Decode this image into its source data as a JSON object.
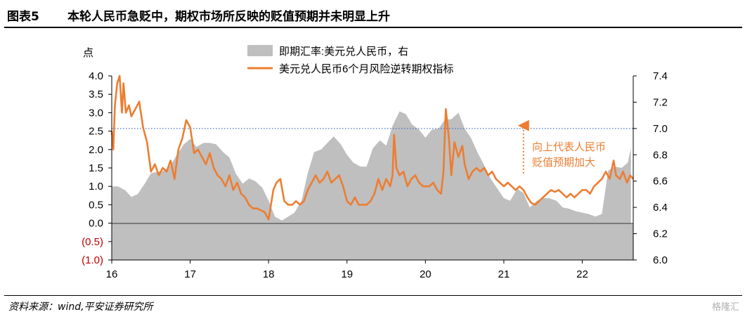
{
  "figure": {
    "number": "图表5",
    "title": "本轮人民币急贬中，期权市场所反映的贬值预期并未明显上升",
    "source": "资料来源：wind,平安证券研究所",
    "watermark": "格隆汇"
  },
  "colors": {
    "area": "#bfbfbf",
    "line": "#ed7d31",
    "ref_line": "#4472c4",
    "annotation": "#ed7d31"
  },
  "chart_data": {
    "type": "area",
    "unit_left": "点",
    "left_axis": {
      "min": -1.0,
      "max": 4.0,
      "ticks": [
        "(1.0)",
        "(0.5)",
        "0.0",
        "0.5",
        "1.0",
        "1.5",
        "2.0",
        "2.5",
        "3.0",
        "3.5",
        "4.0"
      ]
    },
    "right_axis": {
      "min": 6.0,
      "max": 7.4,
      "ticks": [
        "6.0",
        "6.2",
        "6.4",
        "6.6",
        "6.8",
        "7.0",
        "7.2",
        "7.4"
      ]
    },
    "x_ticks": [
      "16",
      "17",
      "18",
      "19",
      "20",
      "21",
      "22"
    ],
    "x_range": [
      2016.0,
      2022.65
    ],
    "legend_position": "top-center",
    "reference_line": {
      "axis": "right",
      "value": 7.0,
      "style": "dotted"
    },
    "annotation": {
      "text_line1": "向上代表人民币",
      "text_line2": "贬值预期加大",
      "arrow_x": 2021.25,
      "arrow_from": 1.35,
      "arrow_to": 2.65
    },
    "series": [
      {
        "name": "即期汇率:美元兑人民币，右",
        "axis": "right",
        "style": "area",
        "points": [
          [
            2016.0,
            6.56
          ],
          [
            2016.08,
            6.56
          ],
          [
            2016.17,
            6.53
          ],
          [
            2016.25,
            6.48
          ],
          [
            2016.33,
            6.5
          ],
          [
            2016.42,
            6.58
          ],
          [
            2016.5,
            6.66
          ],
          [
            2016.58,
            6.67
          ],
          [
            2016.67,
            6.68
          ],
          [
            2016.75,
            6.72
          ],
          [
            2016.83,
            6.8
          ],
          [
            2016.92,
            6.88
          ],
          [
            2017.0,
            6.92
          ],
          [
            2017.08,
            6.86
          ],
          [
            2017.17,
            6.89
          ],
          [
            2017.25,
            6.89
          ],
          [
            2017.33,
            6.88
          ],
          [
            2017.42,
            6.82
          ],
          [
            2017.5,
            6.78
          ],
          [
            2017.58,
            6.66
          ],
          [
            2017.67,
            6.58
          ],
          [
            2017.75,
            6.62
          ],
          [
            2017.83,
            6.6
          ],
          [
            2017.92,
            6.55
          ],
          [
            2018.0,
            6.45
          ],
          [
            2018.08,
            6.33
          ],
          [
            2018.17,
            6.3
          ],
          [
            2018.25,
            6.33
          ],
          [
            2018.33,
            6.36
          ],
          [
            2018.42,
            6.45
          ],
          [
            2018.5,
            6.66
          ],
          [
            2018.58,
            6.82
          ],
          [
            2018.67,
            6.84
          ],
          [
            2018.75,
            6.89
          ],
          [
            2018.83,
            6.94
          ],
          [
            2018.92,
            6.88
          ],
          [
            2019.0,
            6.8
          ],
          [
            2019.08,
            6.74
          ],
          [
            2019.17,
            6.71
          ],
          [
            2019.25,
            6.71
          ],
          [
            2019.33,
            6.85
          ],
          [
            2019.42,
            6.91
          ],
          [
            2019.5,
            6.87
          ],
          [
            2019.58,
            7.02
          ],
          [
            2019.67,
            7.13
          ],
          [
            2019.75,
            7.11
          ],
          [
            2019.83,
            7.03
          ],
          [
            2019.92,
            6.99
          ],
          [
            2020.0,
            6.93
          ],
          [
            2020.08,
            6.99
          ],
          [
            2020.17,
            7.0
          ],
          [
            2020.25,
            7.07
          ],
          [
            2020.33,
            7.07
          ],
          [
            2020.42,
            7.12
          ],
          [
            2020.5,
            7.0
          ],
          [
            2020.58,
            6.93
          ],
          [
            2020.67,
            6.81
          ],
          [
            2020.75,
            6.72
          ],
          [
            2020.83,
            6.62
          ],
          [
            2020.92,
            6.54
          ],
          [
            2021.0,
            6.47
          ],
          [
            2021.08,
            6.45
          ],
          [
            2021.17,
            6.54
          ],
          [
            2021.25,
            6.51
          ],
          [
            2021.33,
            6.4
          ],
          [
            2021.42,
            6.45
          ],
          [
            2021.5,
            6.47
          ],
          [
            2021.58,
            6.47
          ],
          [
            2021.67,
            6.45
          ],
          [
            2021.75,
            6.4
          ],
          [
            2021.83,
            6.39
          ],
          [
            2021.92,
            6.37
          ],
          [
            2022.0,
            6.36
          ],
          [
            2022.08,
            6.35
          ],
          [
            2022.17,
            6.33
          ],
          [
            2022.25,
            6.35
          ],
          [
            2022.33,
            6.68
          ],
          [
            2022.42,
            6.71
          ],
          [
            2022.5,
            6.7
          ],
          [
            2022.58,
            6.74
          ],
          [
            2022.62,
            6.85
          ]
        ]
      },
      {
        "name": "美元兑人民币6个月风险逆转期权指标",
        "axis": "left",
        "style": "line",
        "points": [
          [
            2016.0,
            2.5
          ],
          [
            2016.02,
            2.0
          ],
          [
            2016.04,
            3.2
          ],
          [
            2016.07,
            3.8
          ],
          [
            2016.1,
            4.0
          ],
          [
            2016.13,
            3.0
          ],
          [
            2016.15,
            3.8
          ],
          [
            2016.18,
            3.0
          ],
          [
            2016.22,
            3.2
          ],
          [
            2016.25,
            2.9
          ],
          [
            2016.3,
            3.1
          ],
          [
            2016.35,
            3.3
          ],
          [
            2016.4,
            2.6
          ],
          [
            2016.45,
            2.2
          ],
          [
            2016.5,
            1.4
          ],
          [
            2016.55,
            1.6
          ],
          [
            2016.6,
            1.3
          ],
          [
            2016.65,
            1.5
          ],
          [
            2016.7,
            1.4
          ],
          [
            2016.75,
            1.7
          ],
          [
            2016.8,
            1.2
          ],
          [
            2016.85,
            2.0
          ],
          [
            2016.9,
            2.3
          ],
          [
            2016.95,
            2.8
          ],
          [
            2017.0,
            2.6
          ],
          [
            2017.05,
            1.9
          ],
          [
            2017.1,
            2.0
          ],
          [
            2017.15,
            1.8
          ],
          [
            2017.2,
            1.6
          ],
          [
            2017.25,
            1.9
          ],
          [
            2017.3,
            1.5
          ],
          [
            2017.35,
            1.3
          ],
          [
            2017.4,
            1.2
          ],
          [
            2017.45,
            1.0
          ],
          [
            2017.5,
            1.3
          ],
          [
            2017.55,
            0.9
          ],
          [
            2017.6,
            1.1
          ],
          [
            2017.65,
            0.8
          ],
          [
            2017.7,
            0.7
          ],
          [
            2017.75,
            0.5
          ],
          [
            2017.8,
            0.4
          ],
          [
            2017.85,
            0.4
          ],
          [
            2017.9,
            0.35
          ],
          [
            2017.95,
            0.3
          ],
          [
            2018.0,
            0.1
          ],
          [
            2018.03,
            0.5
          ],
          [
            2018.06,
            0.9
          ],
          [
            2018.1,
            1.1
          ],
          [
            2018.15,
            1.2
          ],
          [
            2018.2,
            0.6
          ],
          [
            2018.25,
            0.5
          ],
          [
            2018.3,
            0.5
          ],
          [
            2018.35,
            0.6
          ],
          [
            2018.4,
            0.5
          ],
          [
            2018.45,
            0.6
          ],
          [
            2018.5,
            0.9
          ],
          [
            2018.55,
            1.1
          ],
          [
            2018.6,
            1.3
          ],
          [
            2018.65,
            1.1
          ],
          [
            2018.7,
            1.2
          ],
          [
            2018.75,
            1.4
          ],
          [
            2018.8,
            1.1
          ],
          [
            2018.85,
            1.2
          ],
          [
            2018.9,
            1.3
          ],
          [
            2018.95,
            1.0
          ],
          [
            2019.0,
            0.6
          ],
          [
            2019.05,
            0.5
          ],
          [
            2019.1,
            0.7
          ],
          [
            2019.15,
            0.5
          ],
          [
            2019.2,
            0.5
          ],
          [
            2019.25,
            0.5
          ],
          [
            2019.3,
            0.6
          ],
          [
            2019.35,
            0.8
          ],
          [
            2019.4,
            1.2
          ],
          [
            2019.45,
            0.9
          ],
          [
            2019.5,
            1.2
          ],
          [
            2019.55,
            1.0
          ],
          [
            2019.58,
            1.3
          ],
          [
            2019.6,
            2.4
          ],
          [
            2019.63,
            1.5
          ],
          [
            2019.67,
            1.3
          ],
          [
            2019.72,
            1.4
          ],
          [
            2019.77,
            1.0
          ],
          [
            2019.82,
            1.2
          ],
          [
            2019.87,
            1.3
          ],
          [
            2019.92,
            1.1
          ],
          [
            2019.97,
            1.0
          ],
          [
            2020.0,
            1.0
          ],
          [
            2020.05,
            1.0
          ],
          [
            2020.1,
            1.1
          ],
          [
            2020.15,
            0.9
          ],
          [
            2020.2,
            0.8
          ],
          [
            2020.23,
            1.4
          ],
          [
            2020.26,
            3.1
          ],
          [
            2020.3,
            2.3
          ],
          [
            2020.33,
            1.3
          ],
          [
            2020.37,
            2.2
          ],
          [
            2020.42,
            1.8
          ],
          [
            2020.47,
            2.1
          ],
          [
            2020.5,
            1.6
          ],
          [
            2020.55,
            1.2
          ],
          [
            2020.6,
            1.4
          ],
          [
            2020.65,
            1.5
          ],
          [
            2020.7,
            1.4
          ],
          [
            2020.75,
            1.5
          ],
          [
            2020.8,
            1.3
          ],
          [
            2020.85,
            1.4
          ],
          [
            2020.9,
            1.2
          ],
          [
            2020.95,
            1.1
          ],
          [
            2021.0,
            1.0
          ],
          [
            2021.05,
            1.1
          ],
          [
            2021.1,
            1.0
          ],
          [
            2021.15,
            0.9
          ],
          [
            2021.2,
            1.0
          ],
          [
            2021.25,
            0.9
          ],
          [
            2021.3,
            0.7
          ],
          [
            2021.35,
            0.55
          ],
          [
            2021.4,
            0.5
          ],
          [
            2021.45,
            0.6
          ],
          [
            2021.5,
            0.7
          ],
          [
            2021.55,
            0.8
          ],
          [
            2021.6,
            0.9
          ],
          [
            2021.65,
            0.85
          ],
          [
            2021.7,
            0.9
          ],
          [
            2021.75,
            0.8
          ],
          [
            2021.8,
            0.7
          ],
          [
            2021.85,
            0.8
          ],
          [
            2021.9,
            0.7
          ],
          [
            2021.95,
            0.8
          ],
          [
            2022.0,
            0.9
          ],
          [
            2022.05,
            0.9
          ],
          [
            2022.1,
            0.8
          ],
          [
            2022.15,
            1.0
          ],
          [
            2022.2,
            1.1
          ],
          [
            2022.25,
            1.2
          ],
          [
            2022.3,
            1.4
          ],
          [
            2022.35,
            1.2
          ],
          [
            2022.4,
            1.7
          ],
          [
            2022.43,
            1.3
          ],
          [
            2022.48,
            1.2
          ],
          [
            2022.52,
            1.4
          ],
          [
            2022.57,
            1.1
          ],
          [
            2022.61,
            1.3
          ],
          [
            2022.65,
            1.2
          ]
        ]
      }
    ]
  }
}
